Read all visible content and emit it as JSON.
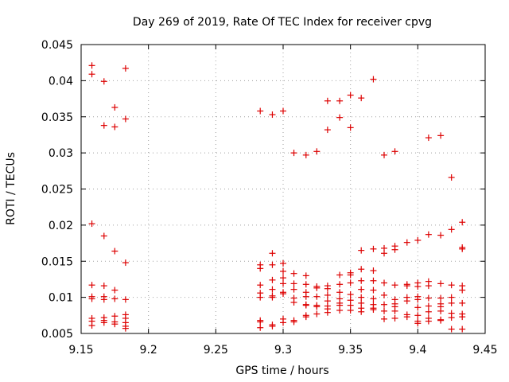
{
  "chart_data": {
    "type": "scatter",
    "title": "Day 269 of 2019, Rate Of TEC Index for receiver cpvg",
    "xlabel": "GPS time / hours",
    "ylabel": "ROTI / TECUs",
    "xlim": [
      9.15,
      9.45
    ],
    "ylim": [
      0.005,
      0.045
    ],
    "xticks": [
      9.15,
      9.2,
      9.25,
      9.3,
      9.35,
      9.4,
      9.45
    ],
    "xtick_labels": [
      "9.15",
      "9.2",
      "9.25",
      "9.3",
      "9.35",
      "9.4",
      "9.45"
    ],
    "yticks": [
      0.005,
      0.01,
      0.015,
      0.02,
      0.025,
      0.03,
      0.035,
      0.04,
      0.045
    ],
    "ytick_labels": [
      "0.005",
      "0.01",
      "0.015",
      "0.02",
      "0.025",
      "0.03",
      "0.035",
      "0.04",
      "0.045"
    ],
    "grid": true,
    "marker": "+",
    "color": "#dd0000",
    "series": [
      {
        "name": "ROTI",
        "points": [
          [
            9.158,
            0.0421
          ],
          [
            9.158,
            0.0409
          ],
          [
            9.158,
            0.0202
          ],
          [
            9.158,
            0.0117
          ],
          [
            9.158,
            0.0101
          ],
          [
            9.158,
            0.0098
          ],
          [
            9.158,
            0.0071
          ],
          [
            9.158,
            0.0067
          ],
          [
            9.158,
            0.0061
          ],
          [
            9.167,
            0.0399
          ],
          [
            9.167,
            0.0338
          ],
          [
            9.167,
            0.0185
          ],
          [
            9.167,
            0.0116
          ],
          [
            9.167,
            0.0101
          ],
          [
            9.167,
            0.0097
          ],
          [
            9.167,
            0.0072
          ],
          [
            9.167,
            0.0068
          ],
          [
            9.167,
            0.0065
          ],
          [
            9.175,
            0.0363
          ],
          [
            9.175,
            0.0336
          ],
          [
            9.175,
            0.0164
          ],
          [
            9.175,
            0.011
          ],
          [
            9.175,
            0.0098
          ],
          [
            9.175,
            0.0074
          ],
          [
            9.175,
            0.0066
          ],
          [
            9.175,
            0.0063
          ],
          [
            9.183,
            0.0417
          ],
          [
            9.183,
            0.0347
          ],
          [
            9.183,
            0.0148
          ],
          [
            9.183,
            0.0097
          ],
          [
            9.183,
            0.0076
          ],
          [
            9.183,
            0.0071
          ],
          [
            9.183,
            0.0065
          ],
          [
            9.183,
            0.006
          ],
          [
            9.183,
            0.0057
          ],
          [
            9.283,
            0.0358
          ],
          [
            9.283,
            0.0145
          ],
          [
            9.283,
            0.014
          ],
          [
            9.283,
            0.0117
          ],
          [
            9.283,
            0.0106
          ],
          [
            9.283,
            0.01
          ],
          [
            9.283,
            0.0068
          ],
          [
            9.283,
            0.0066
          ],
          [
            9.283,
            0.0058
          ],
          [
            9.292,
            0.0353
          ],
          [
            9.292,
            0.0161
          ],
          [
            9.292,
            0.0145
          ],
          [
            9.292,
            0.0124
          ],
          [
            9.292,
            0.0111
          ],
          [
            9.292,
            0.0102
          ],
          [
            9.292,
            0.01
          ],
          [
            9.292,
            0.0062
          ],
          [
            9.292,
            0.006
          ],
          [
            9.3,
            0.0358
          ],
          [
            9.3,
            0.0147
          ],
          [
            9.3,
            0.0136
          ],
          [
            9.3,
            0.0127
          ],
          [
            9.3,
            0.0119
          ],
          [
            9.3,
            0.0107
          ],
          [
            9.3,
            0.0105
          ],
          [
            9.3,
            0.007
          ],
          [
            9.3,
            0.0065
          ],
          [
            9.308,
            0.03
          ],
          [
            9.308,
            0.0133
          ],
          [
            9.308,
            0.0119
          ],
          [
            9.308,
            0.0111
          ],
          [
            9.308,
            0.0099
          ],
          [
            9.308,
            0.0093
          ],
          [
            9.308,
            0.0068
          ],
          [
            9.308,
            0.0066
          ],
          [
            9.317,
            0.0297
          ],
          [
            9.317,
            0.013
          ],
          [
            9.317,
            0.0118
          ],
          [
            9.317,
            0.0107
          ],
          [
            9.317,
            0.0101
          ],
          [
            9.317,
            0.009
          ],
          [
            9.317,
            0.0089
          ],
          [
            9.317,
            0.0075
          ],
          [
            9.317,
            0.0073
          ],
          [
            9.325,
            0.0302
          ],
          [
            9.325,
            0.0115
          ],
          [
            9.325,
            0.0113
          ],
          [
            9.325,
            0.0101
          ],
          [
            9.325,
            0.0089
          ],
          [
            9.325,
            0.0087
          ],
          [
            9.325,
            0.0077
          ],
          [
            9.333,
            0.0372
          ],
          [
            9.333,
            0.0332
          ],
          [
            9.333,
            0.0116
          ],
          [
            9.333,
            0.0112
          ],
          [
            9.333,
            0.0103
          ],
          [
            9.333,
            0.0095
          ],
          [
            9.333,
            0.0088
          ],
          [
            9.333,
            0.0084
          ],
          [
            9.333,
            0.0079
          ],
          [
            9.342,
            0.0372
          ],
          [
            9.342,
            0.0349
          ],
          [
            9.342,
            0.0131
          ],
          [
            9.342,
            0.0118
          ],
          [
            9.342,
            0.0107
          ],
          [
            9.342,
            0.0098
          ],
          [
            9.342,
            0.0092
          ],
          [
            9.342,
            0.0089
          ],
          [
            9.342,
            0.0082
          ],
          [
            9.35,
            0.038
          ],
          [
            9.35,
            0.0335
          ],
          [
            9.35,
            0.0134
          ],
          [
            9.35,
            0.0131
          ],
          [
            9.35,
            0.012
          ],
          [
            9.35,
            0.0104
          ],
          [
            9.35,
            0.0096
          ],
          [
            9.35,
            0.0089
          ],
          [
            9.35,
            0.0082
          ],
          [
            9.358,
            0.0376
          ],
          [
            9.358,
            0.0165
          ],
          [
            9.358,
            0.0139
          ],
          [
            9.358,
            0.0123
          ],
          [
            9.358,
            0.0111
          ],
          [
            9.358,
            0.01
          ],
          [
            9.358,
            0.0092
          ],
          [
            9.358,
            0.0085
          ],
          [
            9.358,
            0.008
          ],
          [
            9.367,
            0.0402
          ],
          [
            9.367,
            0.0167
          ],
          [
            9.367,
            0.0137
          ],
          [
            9.367,
            0.0123
          ],
          [
            9.367,
            0.011
          ],
          [
            9.367,
            0.0098
          ],
          [
            9.367,
            0.009
          ],
          [
            9.367,
            0.0085
          ],
          [
            9.367,
            0.0083
          ],
          [
            9.375,
            0.0297
          ],
          [
            9.375,
            0.0168
          ],
          [
            9.375,
            0.0161
          ],
          [
            9.375,
            0.012
          ],
          [
            9.375,
            0.0103
          ],
          [
            9.375,
            0.009
          ],
          [
            9.375,
            0.0081
          ],
          [
            9.375,
            0.007
          ],
          [
            9.383,
            0.0302
          ],
          [
            9.383,
            0.0171
          ],
          [
            9.383,
            0.0166
          ],
          [
            9.383,
            0.0117
          ],
          [
            9.383,
            0.0097
          ],
          [
            9.383,
            0.0091
          ],
          [
            9.383,
            0.0087
          ],
          [
            9.383,
            0.0081
          ],
          [
            9.383,
            0.0071
          ],
          [
            9.392,
            0.0176
          ],
          [
            9.392,
            0.0118
          ],
          [
            9.392,
            0.0116
          ],
          [
            9.392,
            0.01
          ],
          [
            9.392,
            0.0095
          ],
          [
            9.392,
            0.0076
          ],
          [
            9.392,
            0.0073
          ],
          [
            9.4,
            0.0179
          ],
          [
            9.4,
            0.012
          ],
          [
            9.4,
            0.0115
          ],
          [
            9.4,
            0.0101
          ],
          [
            9.4,
            0.0097
          ],
          [
            9.4,
            0.0086
          ],
          [
            9.4,
            0.0075
          ],
          [
            9.4,
            0.0067
          ],
          [
            9.4,
            0.0064
          ],
          [
            9.408,
            0.0321
          ],
          [
            9.408,
            0.0187
          ],
          [
            9.408,
            0.0122
          ],
          [
            9.408,
            0.0116
          ],
          [
            9.408,
            0.0099
          ],
          [
            9.408,
            0.0088
          ],
          [
            9.408,
            0.008
          ],
          [
            9.408,
            0.0071
          ],
          [
            9.408,
            0.0067
          ],
          [
            9.417,
            0.0324
          ],
          [
            9.417,
            0.0186
          ],
          [
            9.417,
            0.0119
          ],
          [
            9.417,
            0.0099
          ],
          [
            9.417,
            0.0091
          ],
          [
            9.417,
            0.0087
          ],
          [
            9.417,
            0.0081
          ],
          [
            9.417,
            0.0069
          ],
          [
            9.417,
            0.0068
          ],
          [
            9.425,
            0.0266
          ],
          [
            9.425,
            0.0194
          ],
          [
            9.425,
            0.0117
          ],
          [
            9.425,
            0.01
          ],
          [
            9.425,
            0.0092
          ],
          [
            9.425,
            0.0078
          ],
          [
            9.425,
            0.0072
          ],
          [
            9.425,
            0.0056
          ],
          [
            9.433,
            0.0204
          ],
          [
            9.433,
            0.0169
          ],
          [
            9.433,
            0.0167
          ],
          [
            9.433,
            0.0116
          ],
          [
            9.433,
            0.011
          ],
          [
            9.433,
            0.0092
          ],
          [
            9.433,
            0.0077
          ],
          [
            9.433,
            0.0073
          ],
          [
            9.433,
            0.0056
          ]
        ]
      }
    ]
  }
}
